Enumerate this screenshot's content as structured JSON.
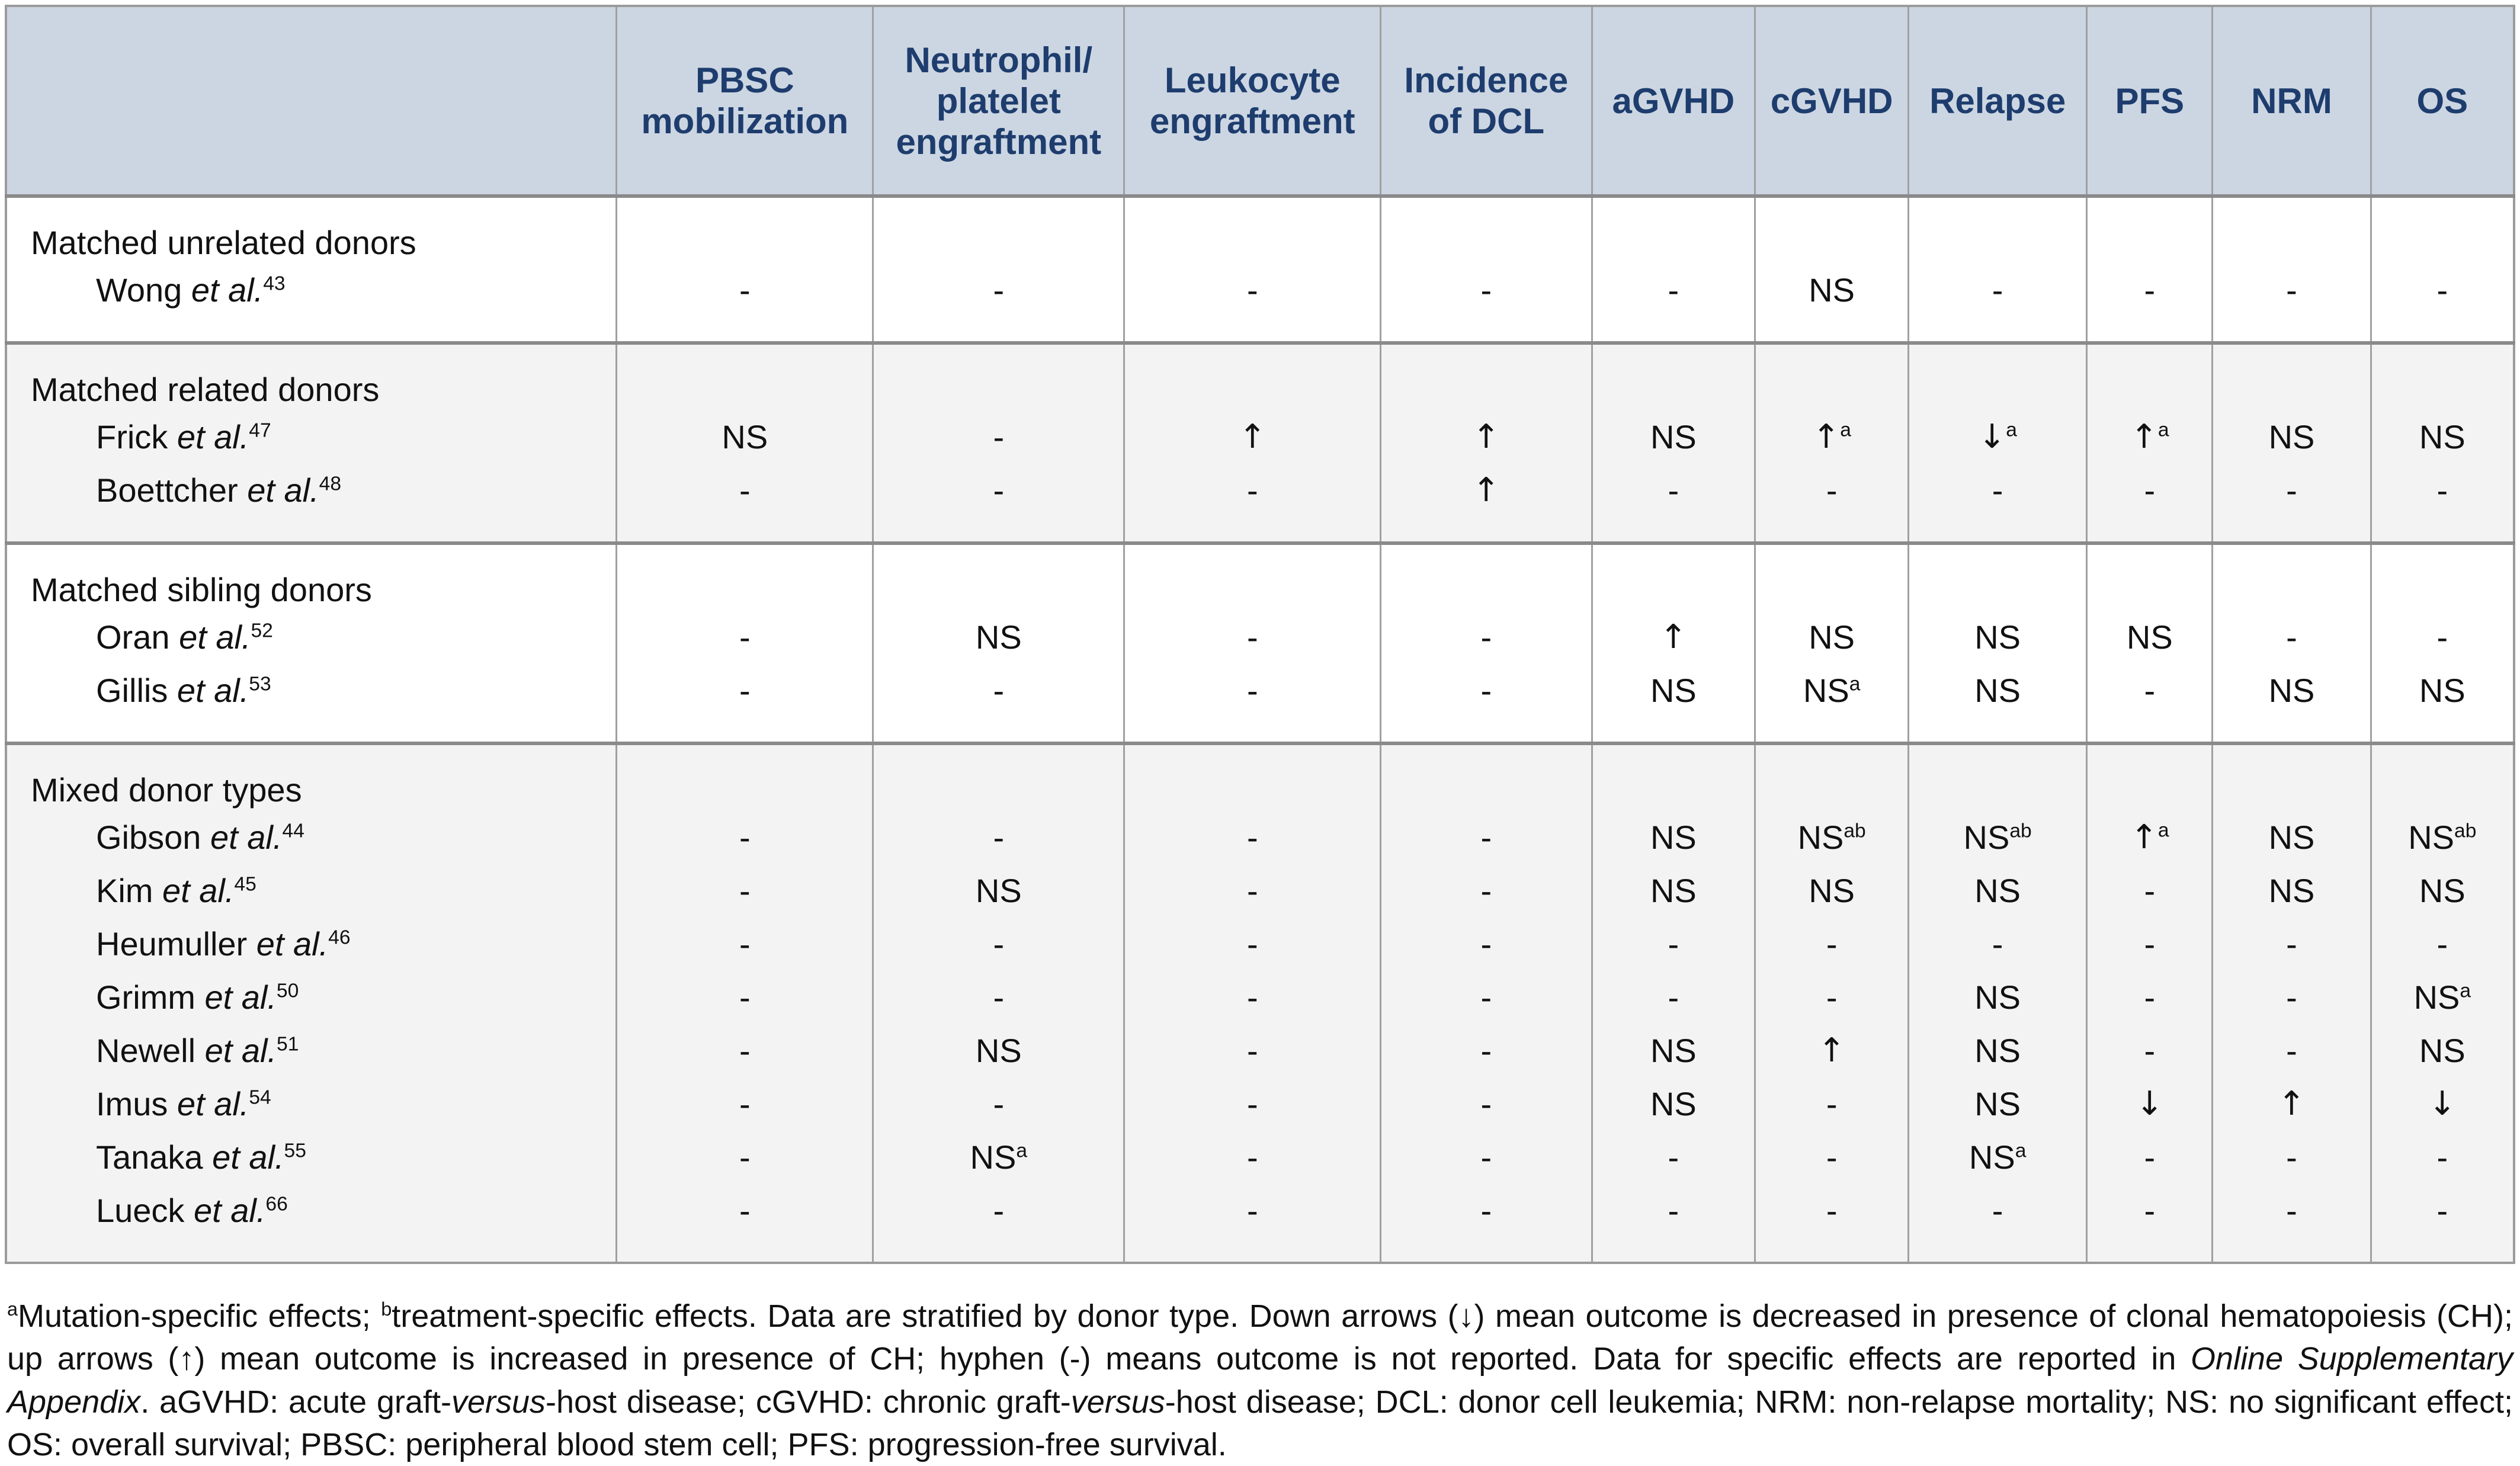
{
  "table": {
    "etal_label": "et al.",
    "columns": [
      "PBSC mobilization",
      "Neutrophil/ platelet engraftment",
      "Leukocyte engraftment",
      "Incidence of DCL",
      "aGVHD",
      "cGVHD",
      "Relapse",
      "PFS",
      "NRM",
      "OS"
    ],
    "legend": {
      "up_arrow": "↑",
      "down_arrow": "↓",
      "not_reported": "-",
      "no_significant_effect": "NS"
    },
    "groups": [
      {
        "label": "Matched unrelated donors",
        "rows": [
          {
            "study": "Wong",
            "ref": "43",
            "cells": [
              "-",
              "-",
              "-",
              "-",
              "-",
              "NS",
              "-",
              "-",
              "-",
              "-"
            ]
          }
        ]
      },
      {
        "label": "Matched related donors",
        "rows": [
          {
            "study": "Frick",
            "ref": "47",
            "cells": [
              "NS",
              "-",
              "↑",
              "↑",
              "NS",
              "↑^a",
              "↓^a",
              "↑^a",
              "NS",
              "NS"
            ]
          },
          {
            "study": "Boettcher",
            "ref": "48",
            "cells": [
              "-",
              "-",
              "-",
              "↑",
              "-",
              "-",
              "-",
              "-",
              "-",
              "-"
            ]
          }
        ]
      },
      {
        "label": "Matched sibling donors",
        "rows": [
          {
            "study": "Oran",
            "ref": "52",
            "cells": [
              "-",
              "NS",
              "-",
              "-",
              "↑",
              "NS",
              "NS",
              "NS",
              "-",
              "-"
            ]
          },
          {
            "study": "Gillis",
            "ref": "53",
            "cells": [
              "-",
              "-",
              "-",
              "-",
              "NS",
              "NS^a",
              "NS",
              "-",
              "NS",
              "NS"
            ]
          }
        ]
      },
      {
        "label": "Mixed donor types",
        "rows": [
          {
            "study": "Gibson",
            "ref": "44",
            "cells": [
              "-",
              "-",
              "-",
              "-",
              "NS",
              "NS^ab",
              "NS^ab",
              "↑^a",
              "NS",
              "NS^ab"
            ]
          },
          {
            "study": "Kim",
            "ref": "45",
            "cells": [
              "-",
              "NS",
              "-",
              "-",
              "NS",
              "NS",
              "NS",
              "-",
              "NS",
              "NS"
            ]
          },
          {
            "study": "Heumuller",
            "ref": "46",
            "cells": [
              "-",
              "-",
              "-",
              "-",
              "-",
              "-",
              "-",
              "-",
              "-",
              "-"
            ]
          },
          {
            "study": "Grimm",
            "ref": "50",
            "cells": [
              "-",
              "-",
              "-",
              "-",
              "-",
              "-",
              "NS",
              "-",
              "-",
              "NS^a"
            ]
          },
          {
            "study": "Newell",
            "ref": "51",
            "cells": [
              "-",
              "NS",
              "-",
              "-",
              "NS",
              "↑",
              "NS",
              "-",
              "-",
              "NS"
            ]
          },
          {
            "study": "Imus",
            "ref": "54",
            "cells": [
              "-",
              "-",
              "-",
              "-",
              "NS",
              "-",
              "NS",
              "↓",
              "↑",
              "↓"
            ]
          },
          {
            "study": "Tanaka",
            "ref": "55",
            "cells": [
              "-",
              "NS^a",
              "-",
              "-",
              "-",
              "-",
              "NS^a",
              "-",
              "-",
              "-"
            ]
          },
          {
            "study": "Lueck",
            "ref": "66",
            "cells": [
              "-",
              "-",
              "-",
              "-",
              "-",
              "-",
              "-",
              "-",
              "-",
              "-"
            ]
          }
        ]
      }
    ],
    "column_widths_percent": [
      24.3,
      10.2,
      10.0,
      10.2,
      8.4,
      6.5,
      6.1,
      7.1,
      5.0,
      6.3,
      5.7
    ],
    "colors": {
      "header_background": "#ccd6e2",
      "header_text": "#1e3d6e",
      "band_gray": "#f3f3f3",
      "band_white": "#ffffff",
      "grid_line": "#a0a0a0",
      "heavy_line": "#8a8a8a"
    }
  },
  "footnote": {
    "segments": [
      {
        "text": "a",
        "sup": true
      },
      {
        "text": "Mutation-specific effects; "
      },
      {
        "text": "b",
        "sup": true
      },
      {
        "text": "treatment-specific effects. Data are stratified by donor type. Down arrows (↓) mean outcome is decreased in presence of clonal hematopoiesis (CH); up arrows (↑) mean outcome is increased in presence of CH; hyphen (-) means outcome is not reported. Data for specific effects are reported in "
      },
      {
        "text": "Online Supplementary Appendix",
        "italic": true
      },
      {
        "text": ". aGVHD: acute graft-"
      },
      {
        "text": "versus",
        "italic": true
      },
      {
        "text": "-host disease; cGVHD: chronic graft-"
      },
      {
        "text": "versus",
        "italic": true
      },
      {
        "text": "-host disease; DCL: donor cell leukemia; NRM: non-relapse mortality; NS: no significant effect; OS: overall survival; PBSC: peripheral blood stem cell; PFS: progression-free survival."
      }
    ]
  }
}
